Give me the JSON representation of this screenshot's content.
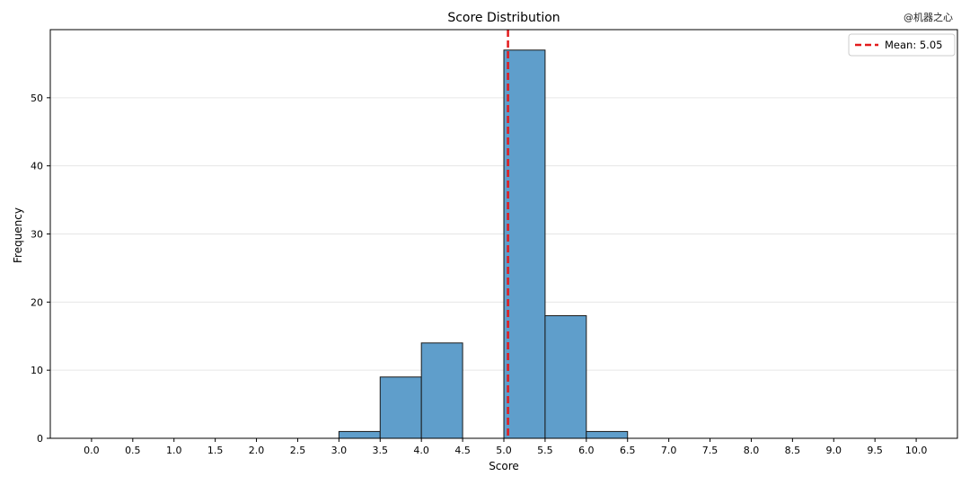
{
  "watermark": "@机器之心",
  "chart_data": {
    "type": "bar",
    "title": "Score Distribution",
    "xlabel": "Score",
    "ylabel": "Frequency",
    "xlim": [
      -0.5,
      10.5
    ],
    "ylim": [
      0,
      60
    ],
    "xticks": [
      "0.0",
      "0.5",
      "1.0",
      "1.5",
      "2.0",
      "2.5",
      "3.0",
      "3.5",
      "4.0",
      "4.5",
      "5.0",
      "5.5",
      "6.0",
      "6.5",
      "7.0",
      "7.5",
      "8.0",
      "8.5",
      "9.0",
      "9.5",
      "10.0"
    ],
    "yticks": [
      "0",
      "10",
      "20",
      "30",
      "40",
      "50"
    ],
    "bins": [
      {
        "start": 3.0,
        "end": 3.5,
        "count": 1
      },
      {
        "start": 3.5,
        "end": 4.0,
        "count": 9
      },
      {
        "start": 4.0,
        "end": 4.5,
        "count": 14
      },
      {
        "start": 4.5,
        "end": 5.0,
        "count": 0
      },
      {
        "start": 5.0,
        "end": 5.5,
        "count": 57
      },
      {
        "start": 5.5,
        "end": 6.0,
        "count": 18
      },
      {
        "start": 6.0,
        "end": 6.5,
        "count": 1
      }
    ],
    "mean": 5.05,
    "legend": {
      "label": "Mean: 5.05",
      "position": "top-right"
    },
    "grid": {
      "y": true,
      "x": false
    },
    "colors": {
      "bar": "#5f9ecb",
      "bar_edge": "#1a1a1a",
      "mean_line": "#e31a1c"
    }
  }
}
